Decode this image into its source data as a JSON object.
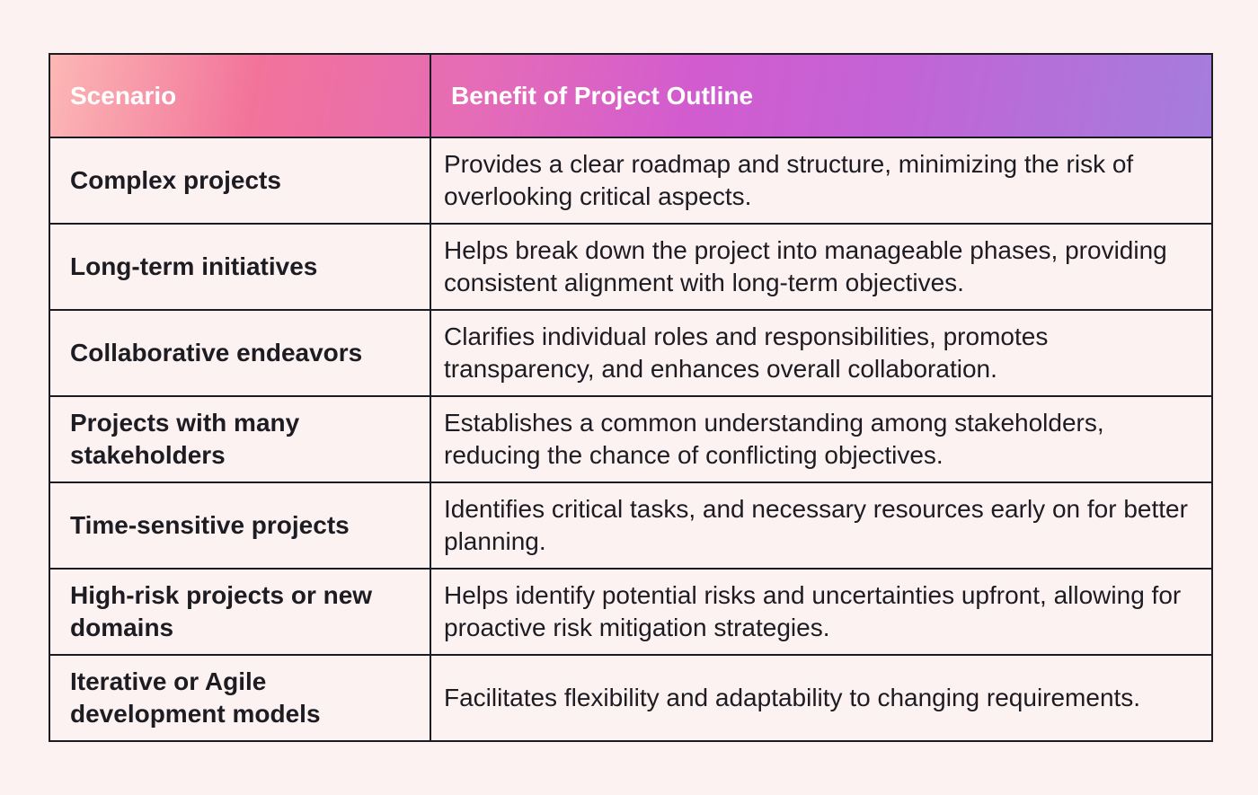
{
  "table": {
    "headers": [
      "Scenario",
      "Benefit of Project Outline"
    ],
    "rows": [
      {
        "scenario": "Complex projects",
        "benefit": "Provides a clear roadmap and structure, minimizing the risk of overlooking critical aspects."
      },
      {
        "scenario": "Long-term initiatives",
        "benefit": "Helps break down the project into manageable phases, providing consistent alignment with long-term objectives."
      },
      {
        "scenario": "Collaborative endeavors",
        "benefit": "Clarifies individual roles and responsibilities, promotes transparency, and enhances overall collaboration."
      },
      {
        "scenario": "Projects with many stakeholders",
        "benefit": "Establishes a common understanding among stakeholders, reducing the chance of conflicting objectives."
      },
      {
        "scenario": "Time-sensitive projects",
        "benefit": "Identifies critical tasks, and necessary resources early on for better planning."
      },
      {
        "scenario": "High-risk projects or new domains",
        "benefit": "Helps identify potential risks and uncertainties upfront, allowing for proactive risk mitigation strategies."
      },
      {
        "scenario": "Iterative or Agile development models",
        "benefit": "Facilitates flexibility and adaptability to changing requirements."
      }
    ]
  },
  "colors": {
    "background": "#fdf2f2",
    "border": "#1c1c22",
    "header_text": "#ffffff",
    "header_gradient": [
      "#fcb8b5",
      "#f2739a",
      "#e46bb8",
      "#d25ccf",
      "#c363d6",
      "#a47ddc"
    ]
  }
}
